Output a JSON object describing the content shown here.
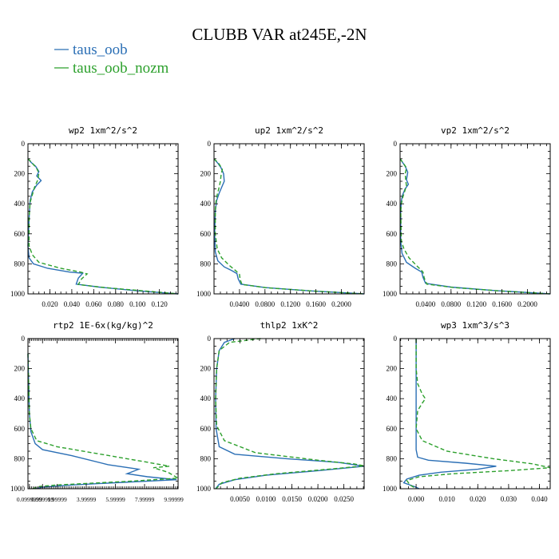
{
  "page_title": "CLUBB VAR at245E,-2N",
  "legend": [
    {
      "label": "taus_oob",
      "color": "#2b6fb5"
    },
    {
      "label": "taus_oob_nozm",
      "color": "#2ca02c"
    }
  ],
  "chart_data": [
    {
      "type": "line",
      "title": "wp2  1xm^2/s^2",
      "xlim": [
        0,
        0.137
      ],
      "ylim": [
        0,
        1000
      ],
      "y_inverted": true,
      "xtick_labels": [
        "0.020",
        "0.040",
        "0.060",
        "0.080",
        "0.100",
        "0.120"
      ],
      "xtick_values": [
        0.02,
        0.04,
        0.06,
        0.08,
        0.1,
        0.12
      ],
      "ytick_labels": [
        "0",
        "200",
        "400",
        "600",
        "800",
        "1000"
      ],
      "series": [
        {
          "name": "taus_oob",
          "points": [
            [
              0,
              100
            ],
            [
              0.003,
              125
            ],
            [
              0.007,
              150
            ],
            [
              0.01,
              185
            ],
            [
              0.008,
              215
            ],
            [
              0.012,
              245
            ],
            [
              0.008,
              275
            ],
            [
              0.004,
              320
            ],
            [
              0.002,
              380
            ],
            [
              0.001,
              500
            ],
            [
              0.0,
              680
            ],
            [
              0.001,
              760
            ],
            [
              0.005,
              800
            ],
            [
              0.018,
              830
            ],
            [
              0.038,
              855
            ],
            [
              0.05,
              863
            ],
            [
              0.046,
              895
            ],
            [
              0.044,
              935
            ],
            [
              0.065,
              955
            ],
            [
              0.1,
              980
            ],
            [
              0.137,
              1000
            ]
          ]
        },
        {
          "name": "taus_oob_nozm",
          "points": [
            [
              0,
              100
            ],
            [
              0.004,
              130
            ],
            [
              0.008,
              165
            ],
            [
              0.01,
              195
            ],
            [
              0.009,
              240
            ],
            [
              0.006,
              290
            ],
            [
              0.004,
              340
            ],
            [
              0.002,
              390
            ],
            [
              0.001,
              500
            ],
            [
              0.001,
              680
            ],
            [
              0.004,
              740
            ],
            [
              0.01,
              790
            ],
            [
              0.03,
              830
            ],
            [
              0.048,
              855
            ],
            [
              0.054,
              867
            ],
            [
              0.049,
              900
            ],
            [
              0.046,
              938
            ],
            [
              0.07,
              958
            ],
            [
              0.105,
              980
            ],
            [
              0.137,
              1000
            ]
          ]
        }
      ]
    },
    {
      "type": "line",
      "title": "up2  1xm^2/s^2",
      "xlim": [
        0,
        0.2357
      ],
      "ylim": [
        0,
        1000
      ],
      "y_inverted": true,
      "xtick_labels": [
        "0.0400",
        "0.0800",
        "0.1200",
        "0.1600",
        "0.2000"
      ],
      "xtick_values": [
        0.04,
        0.08,
        0.12,
        0.16,
        0.2
      ],
      "ytick_labels": [
        "0",
        "200",
        "400",
        "600",
        "800",
        "1000"
      ],
      "series": [
        {
          "name": "taus_oob",
          "points": [
            [
              0,
              100
            ],
            [
              0.006,
              130
            ],
            [
              0.011,
              160
            ],
            [
              0.015,
              200
            ],
            [
              0.016,
              250
            ],
            [
              0.012,
              290
            ],
            [
              0.008,
              330
            ],
            [
              0.004,
              380
            ],
            [
              0.002,
              450
            ],
            [
              0.001,
              600
            ],
            [
              0.002,
              720
            ],
            [
              0.006,
              780
            ],
            [
              0.016,
              820
            ],
            [
              0.028,
              845
            ],
            [
              0.036,
              865
            ],
            [
              0.038,
              900
            ],
            [
              0.042,
              935
            ],
            [
              0.08,
              958
            ],
            [
              0.15,
              980
            ],
            [
              0.2357,
              1000
            ]
          ]
        },
        {
          "name": "taus_oob_nozm",
          "points": [
            [
              0,
              100
            ],
            [
              0.008,
              135
            ],
            [
              0.013,
              170
            ],
            [
              0.011,
              210
            ],
            [
              0.01,
              250
            ],
            [
              0.008,
              290
            ],
            [
              0.005,
              340
            ],
            [
              0.003,
              390
            ],
            [
              0.002,
              450
            ],
            [
              0.002,
              600
            ],
            [
              0.005,
              700
            ],
            [
              0.012,
              760
            ],
            [
              0.024,
              810
            ],
            [
              0.034,
              845
            ],
            [
              0.04,
              870
            ],
            [
              0.041,
              905
            ],
            [
              0.044,
              938
            ],
            [
              0.085,
              960
            ],
            [
              0.155,
              981
            ],
            [
              0.2357,
              1000
            ]
          ]
        }
      ]
    },
    {
      "type": "line",
      "title": "vp2  1xm^2/s^2",
      "xlim": [
        0,
        0.2357
      ],
      "ylim": [
        0,
        1000
      ],
      "y_inverted": true,
      "xtick_labels": [
        "0.0400",
        "0.0800",
        "0.1200",
        "0.1600",
        "0.2000"
      ],
      "xtick_values": [
        0.04,
        0.08,
        0.12,
        0.16,
        0.2
      ],
      "ytick_labels": [
        "0",
        "200",
        "400",
        "600",
        "800",
        "1000"
      ],
      "series": [
        {
          "name": "taus_oob",
          "points": [
            [
              0,
              100
            ],
            [
              0.004,
              125
            ],
            [
              0.008,
              150
            ],
            [
              0.012,
              190
            ],
            [
              0.01,
              240
            ],
            [
              0.013,
              270
            ],
            [
              0.008,
              300
            ],
            [
              0.004,
              340
            ],
            [
              0.002,
              380
            ],
            [
              0.001,
              450
            ],
            [
              0.001,
              650
            ],
            [
              0.003,
              730
            ],
            [
              0.01,
              790
            ],
            [
              0.024,
              830
            ],
            [
              0.034,
              855
            ],
            [
              0.036,
              890
            ],
            [
              0.04,
              930
            ],
            [
              0.08,
              955
            ],
            [
              0.15,
              978
            ],
            [
              0.2357,
              1000
            ]
          ]
        },
        {
          "name": "taus_oob_nozm",
          "points": [
            [
              0,
              100
            ],
            [
              0.005,
              130
            ],
            [
              0.01,
              160
            ],
            [
              0.008,
              200
            ],
            [
              0.009,
              250
            ],
            [
              0.01,
              280
            ],
            [
              0.007,
              320
            ],
            [
              0.004,
              360
            ],
            [
              0.002,
              400
            ],
            [
              0.001,
              450
            ],
            [
              0.002,
              650
            ],
            [
              0.006,
              700
            ],
            [
              0.014,
              760
            ],
            [
              0.028,
              820
            ],
            [
              0.036,
              855
            ],
            [
              0.038,
              895
            ],
            [
              0.042,
              935
            ],
            [
              0.085,
              958
            ],
            [
              0.155,
              980
            ],
            [
              0.2357,
              1000
            ]
          ]
        }
      ]
    },
    {
      "type": "line",
      "title": "rtp2  1E-6x(kg/kg)^2",
      "xlim": [
        0,
        10.3
      ],
      "ylim": [
        0,
        1000
      ],
      "y_inverted": true,
      "xtick_labels": [
        "0.0999999",
        "0.999999",
        "1.99999",
        "3.99999",
        "5.99999",
        "7.99999",
        "9.99999"
      ],
      "xtick_values": [
        0.1,
        1.0,
        2.0,
        4.0,
        6.0,
        8.0,
        10.0
      ],
      "ytick_labels": [
        "0",
        "200",
        "400",
        "600",
        "800",
        "1000"
      ],
      "series": [
        {
          "name": "taus_oob",
          "points": [
            [
              0,
              100
            ],
            [
              0.05,
              300
            ],
            [
              0.1,
              500
            ],
            [
              0.2,
              620
            ],
            [
              0.5,
              700
            ],
            [
              1.0,
              740
            ],
            [
              3.0,
              780
            ],
            [
              5.5,
              840
            ],
            [
              7.6,
              870
            ],
            [
              6.8,
              900
            ],
            [
              8.2,
              920
            ],
            [
              10.2,
              940
            ],
            [
              6.0,
              960
            ],
            [
              3.0,
              975
            ],
            [
              1.0,
              990
            ],
            [
              0.5,
              1000
            ]
          ]
        },
        {
          "name": "taus_oob_nozm",
          "points": [
            [
              0,
              100
            ],
            [
              0.05,
              300
            ],
            [
              0.1,
              500
            ],
            [
              0.2,
              600
            ],
            [
              0.6,
              680
            ],
            [
              2.0,
              720
            ],
            [
              5.0,
              770
            ],
            [
              8.0,
              820
            ],
            [
              9.7,
              850
            ],
            [
              8.6,
              860
            ],
            [
              9.6,
              890
            ],
            [
              10.3,
              930
            ],
            [
              7.0,
              950
            ],
            [
              4.0,
              965
            ],
            [
              2.0,
              975
            ],
            [
              0.8,
              985
            ],
            [
              0.3,
              1000
            ]
          ]
        }
      ]
    },
    {
      "type": "line",
      "title": "thlp2  1xK^2",
      "xlim": [
        0,
        0.0289
      ],
      "ylim": [
        0,
        1000
      ],
      "y_inverted": true,
      "xtick_labels": [
        "0.0050",
        "0.0100",
        "0.0150",
        "0.0200",
        "0.0250"
      ],
      "xtick_values": [
        0.005,
        0.01,
        0.015,
        0.02,
        0.025
      ],
      "ytick_labels": [
        "0",
        "200",
        "400",
        "600",
        "800",
        "1000"
      ],
      "series": [
        {
          "name": "taus_oob",
          "points": [
            [
              0.004,
              0
            ],
            [
              0.002,
              25
            ],
            [
              0.001,
              80
            ],
            [
              0.0005,
              200
            ],
            [
              0.0003,
              400
            ],
            [
              0.0004,
              600
            ],
            [
              0.001,
              720
            ],
            [
              0.004,
              770
            ],
            [
              0.014,
              800
            ],
            [
              0.024,
              825
            ],
            [
              0.0289,
              850
            ],
            [
              0.02,
              880
            ],
            [
              0.01,
              910
            ],
            [
              0.004,
              940
            ],
            [
              0.001,
              970
            ],
            [
              0.0003,
              1000
            ]
          ]
        },
        {
          "name": "taus_oob_nozm",
          "points": [
            [
              0.009,
              0
            ],
            [
              0.003,
              25
            ],
            [
              0.001,
              80
            ],
            [
              0.0005,
              200
            ],
            [
              0.0003,
              400
            ],
            [
              0.0005,
              580
            ],
            [
              0.002,
              680
            ],
            [
              0.008,
              760
            ],
            [
              0.02,
              810
            ],
            [
              0.027,
              835
            ],
            [
              0.0289,
              848
            ],
            [
              0.022,
              870
            ],
            [
              0.012,
              900
            ],
            [
              0.005,
              930
            ],
            [
              0.0015,
              960
            ],
            [
              0.0004,
              1000
            ]
          ]
        }
      ]
    },
    {
      "type": "line",
      "title": "wp3  1xm^3/s^3",
      "xlim": [
        -0.0052,
        0.0435
      ],
      "ylim": [
        0,
        1000
      ],
      "y_inverted": true,
      "xtick_labels": [
        "0.000",
        "0.010",
        "0.020",
        "0.030",
        "0.040"
      ],
      "xtick_values": [
        0.0,
        0.01,
        0.02,
        0.03,
        0.04
      ],
      "ytick_labels": [
        "0",
        "200",
        "400",
        "600",
        "800",
        "1000"
      ],
      "series": [
        {
          "name": "taus_oob",
          "points": [
            [
              0,
              0
            ],
            [
              0,
              200
            ],
            [
              0,
              400
            ],
            [
              0,
              600
            ],
            [
              0,
              740
            ],
            [
              0.0005,
              790
            ],
            [
              0.004,
              810
            ],
            [
              0.016,
              830
            ],
            [
              0.026,
              850
            ],
            [
              0.02,
              870
            ],
            [
              0.008,
              890
            ],
            [
              0.001,
              910
            ],
            [
              -0.003,
              935
            ],
            [
              -0.004,
              960
            ],
            [
              0.0,
              990
            ],
            [
              0.001,
              1000
            ]
          ]
        },
        {
          "name": "taus_oob_nozm",
          "points": [
            [
              0,
              0
            ],
            [
              0,
              200
            ],
            [
              0.0005,
              300
            ],
            [
              0.002,
              370
            ],
            [
              0.003,
              400
            ],
            [
              0.002,
              430
            ],
            [
              0.0005,
              480
            ],
            [
              0.0,
              600
            ],
            [
              0.002,
              680
            ],
            [
              0.01,
              750
            ],
            [
              0.025,
              800
            ],
            [
              0.038,
              835
            ],
            [
              0.0435,
              860
            ],
            [
              0.03,
              880
            ],
            [
              0.012,
              900
            ],
            [
              0.001,
              920
            ],
            [
              -0.003,
              945
            ],
            [
              -0.002,
              975
            ],
            [
              0.0,
              1000
            ]
          ]
        }
      ]
    }
  ]
}
